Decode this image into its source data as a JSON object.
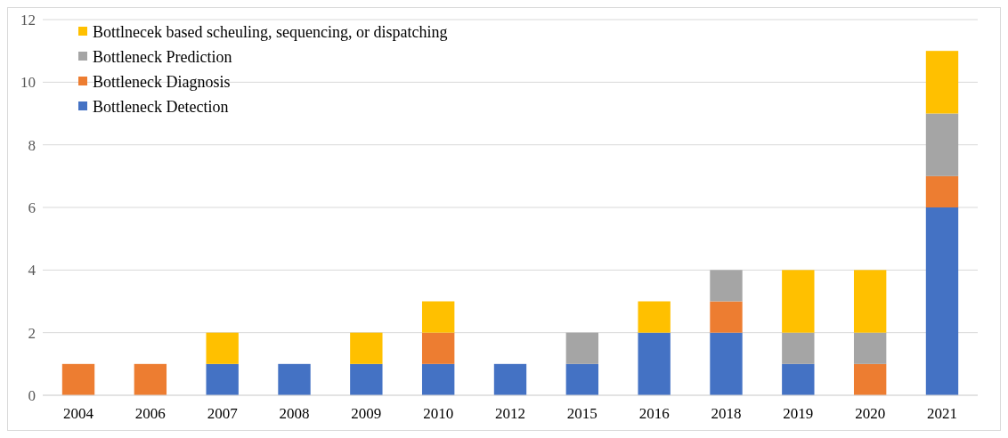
{
  "chart_data": {
    "type": "bar",
    "stacked": true,
    "categories": [
      "2004",
      "2006",
      "2007",
      "2008",
      "2009",
      "2010",
      "2012",
      "2015",
      "2016",
      "2018",
      "2019",
      "2020",
      "2021"
    ],
    "series": [
      {
        "name": "Bottleneck Detection",
        "color": "#4472c4",
        "values": [
          0,
          0,
          1,
          1,
          1,
          1,
          1,
          1,
          2,
          2,
          1,
          0,
          6
        ]
      },
      {
        "name": "Bottleneck Diagnosis",
        "color": "#ed7d31",
        "values": [
          1,
          1,
          0,
          0,
          0,
          1,
          0,
          0,
          0,
          1,
          0,
          1,
          1
        ]
      },
      {
        "name": "Bottleneck Prediction",
        "color": "#a5a5a5",
        "values": [
          0,
          0,
          0,
          0,
          0,
          0,
          0,
          1,
          0,
          1,
          1,
          1,
          2
        ]
      },
      {
        "name": "Bottlnecek based scheuling, sequencing, or dispatching",
        "color": "#ffc000",
        "values": [
          0,
          0,
          1,
          0,
          1,
          1,
          0,
          0,
          1,
          0,
          2,
          2,
          2
        ]
      }
    ],
    "ylim": [
      0,
      12
    ],
    "yticks": [
      0,
      2,
      4,
      6,
      8,
      10,
      12
    ],
    "grid": "y",
    "legend": "top left"
  }
}
